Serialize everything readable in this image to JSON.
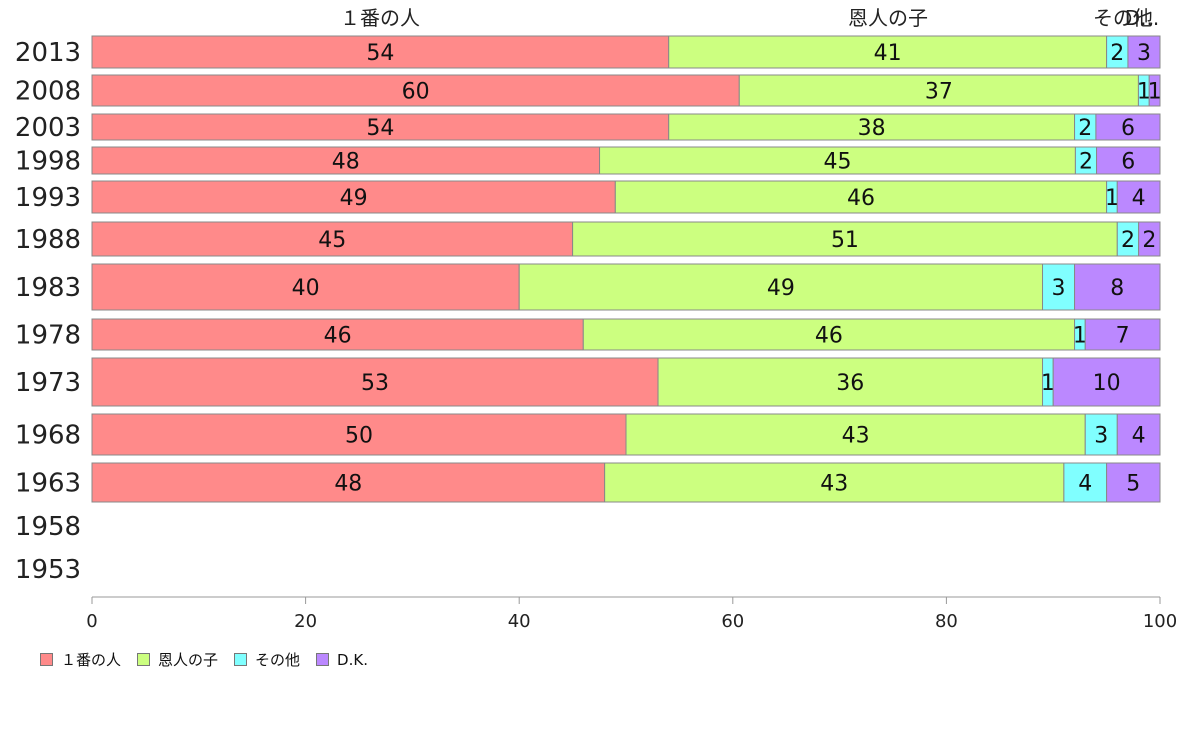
{
  "chart_data": {
    "type": "bar",
    "orientation": "horizontal",
    "stacked": true,
    "categories": [
      "2013",
      "2008",
      "2003",
      "1998",
      "1993",
      "1988",
      "1983",
      "1978",
      "1973",
      "1968",
      "1963",
      "1958",
      "1953"
    ],
    "series": [
      {
        "name": "１番の人",
        "color": "#ff8a8a",
        "values": [
          54,
          60,
          54,
          48,
          49,
          45,
          40,
          46,
          53,
          50,
          48,
          null,
          null
        ]
      },
      {
        "name": "恩人の子",
        "color": "#ccff80",
        "values": [
          41,
          37,
          38,
          45,
          46,
          51,
          49,
          46,
          36,
          43,
          43,
          null,
          null
        ]
      },
      {
        "name": "その他",
        "color": "#80ffff",
        "values": [
          2,
          1,
          2,
          2,
          1,
          2,
          3,
          1,
          1,
          3,
          4,
          null,
          null
        ]
      },
      {
        "name": "D.K.",
        "color": "#bb88ff",
        "values": [
          3,
          1,
          6,
          6,
          4,
          2,
          8,
          7,
          10,
          4,
          5,
          null,
          null
        ]
      }
    ],
    "top_labels": [
      "１番の人",
      "恩人の子",
      "その他",
      "D..."
    ],
    "xlim": [
      0,
      100
    ],
    "xticks": [
      "0",
      "20",
      "40",
      "60",
      "80",
      "100"
    ],
    "grid": false,
    "legend_position": "bottom-left"
  }
}
